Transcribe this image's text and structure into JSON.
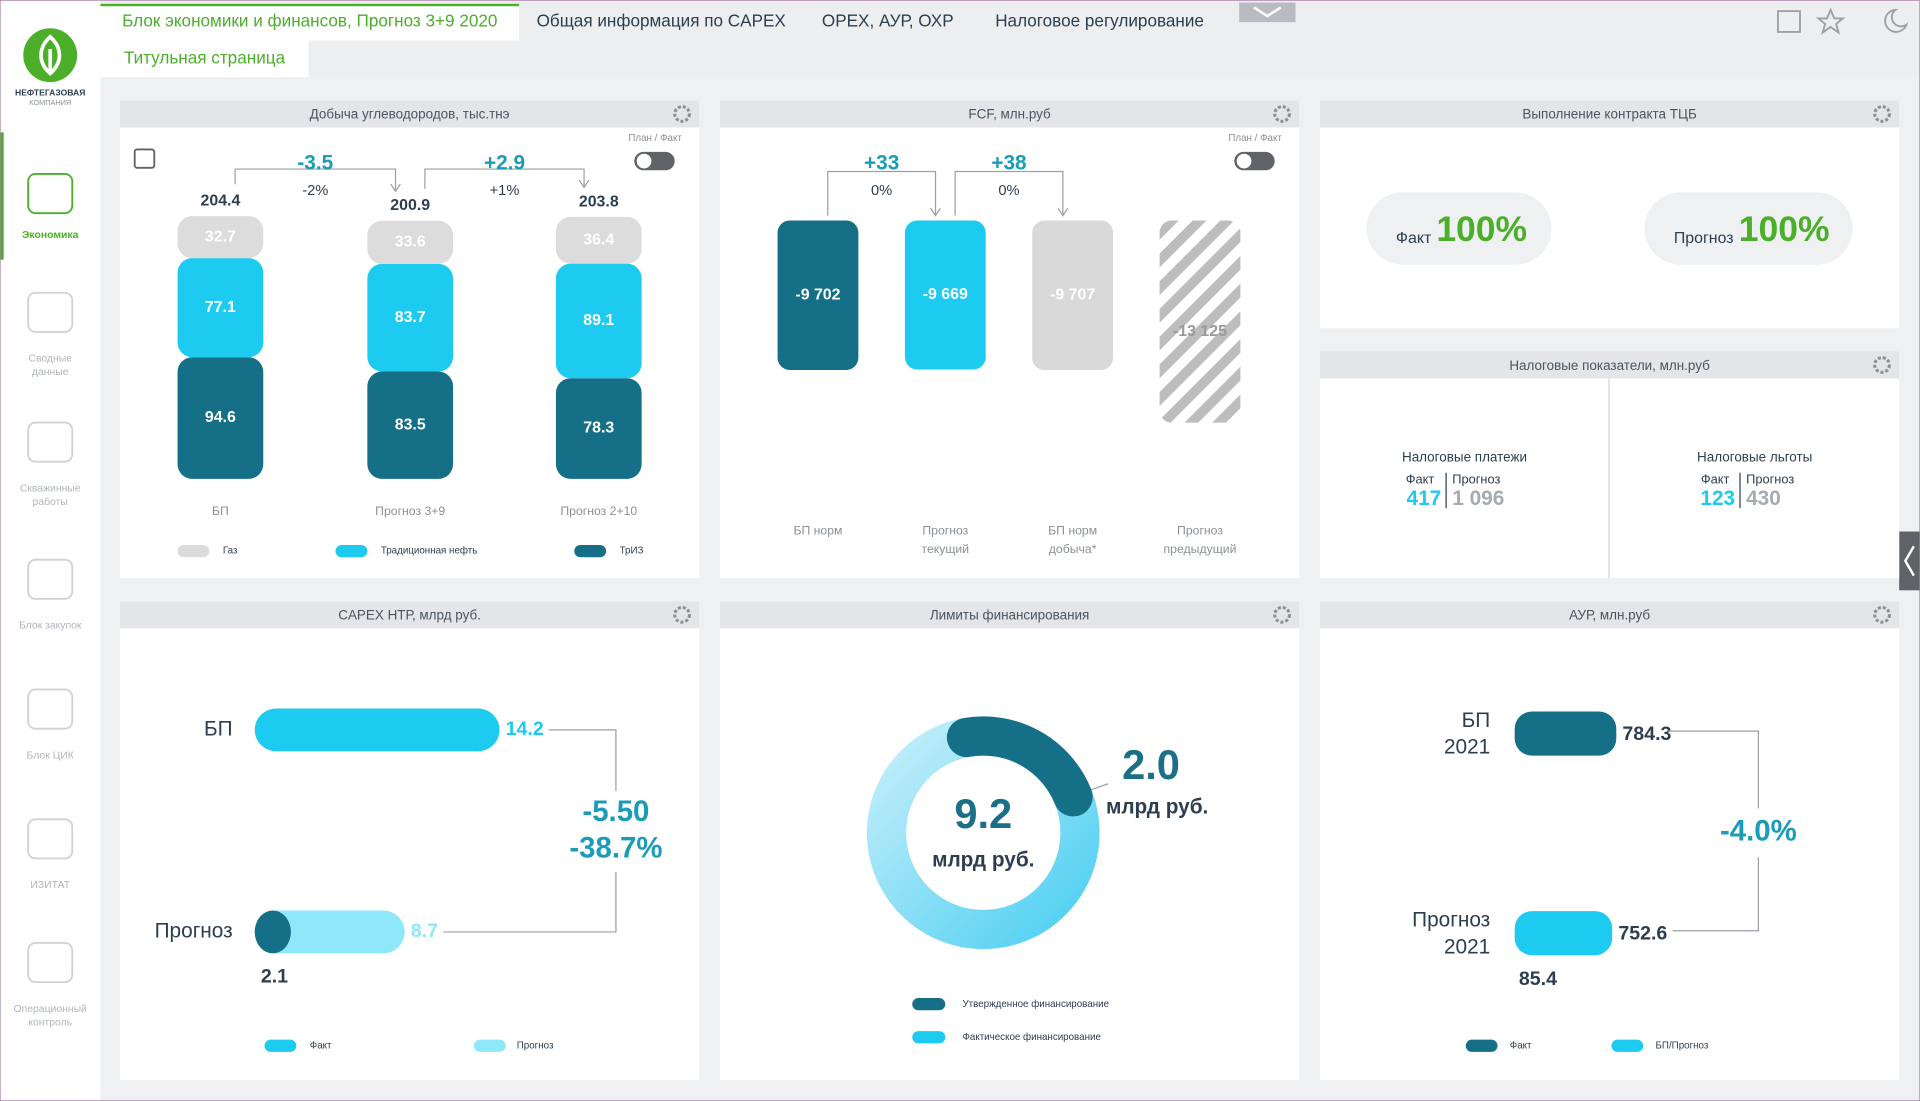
{
  "sidebar": {
    "logo": "НЕФТЕГАЗОВАЯ",
    "logo_sub": "КОМПАНИЯ",
    "items": [
      [
        "Экономика"
      ],
      [
        "Сводные",
        "данные"
      ],
      [
        "Скважинные",
        "работы"
      ],
      [
        "Блок закупок"
      ],
      [
        "Блок ЦИК"
      ],
      [
        "ИЗИТАТ"
      ],
      [
        "Операционный",
        "контроль"
      ]
    ]
  },
  "tabs": [
    "Блок экономики и финансов, Прогноз 3+9 2020",
    "Общая информация по CAPEX",
    "OPEX, АУР, ОХР",
    "Налоговое регулирование",
    "Титульная страница"
  ],
  "production": {
    "title": "Добыча углеводородов, тыс.тнэ",
    "toggle": "План / Факт",
    "categories": [
      "БП",
      "Прогноз 3+9",
      "Прогноз 2+10"
    ],
    "totals": [
      204.4,
      200.9,
      203.8
    ],
    "series": [
      {
        "name": "Газ",
        "color": "#dcdcdc",
        "values": [
          32.7,
          33.6,
          36.4
        ]
      },
      {
        "name": "Традиционная нефть",
        "color": "#1ecbf0",
        "values": [
          77.1,
          83.7,
          89.1
        ]
      },
      {
        "name": "ТрИЗ",
        "color": "#156f87",
        "values": [
          94.6,
          83.5,
          78.3
        ]
      }
    ],
    "deltas": [
      {
        "value": "-3.5",
        "pct": "-2%"
      },
      {
        "value": "+2.9",
        "pct": "+1%"
      }
    ]
  },
  "fcf": {
    "title": "FCF, млн.руб",
    "toggle": "План / Факт",
    "categories": [
      [
        "БП норм"
      ],
      [
        "Прогноз",
        "текущий"
      ],
      [
        "БП норм",
        "добыча*"
      ],
      [
        "Прогноз",
        "предыдущий"
      ]
    ],
    "values": [
      -9702,
      -9669,
      -9707,
      -13125
    ],
    "value_labels": [
      "-9 702",
      "-9 669",
      "-9 707",
      "-13 125"
    ],
    "colors": [
      "#156f87",
      "#1ecbf0",
      "#d9d9d9",
      "#b8b8b8"
    ],
    "hatched": [
      false,
      false,
      false,
      true
    ],
    "deltas": [
      {
        "value": "+33",
        "pct": "0%"
      },
      {
        "value": "+38",
        "pct": "0%"
      }
    ]
  },
  "contract": {
    "title": "Выполнение контракта ТЦБ",
    "items": [
      {
        "label": "Факт",
        "value": "100%"
      },
      {
        "label": "Прогноз",
        "value": "100%"
      }
    ]
  },
  "tax": {
    "title": "Налоговые показатели, млн.руб",
    "groups": [
      {
        "name": "Налоговые платежи",
        "fact_label": "Факт",
        "forecast_label": "Прогноз",
        "fact": "417",
        "forecast": "1 096"
      },
      {
        "name": "Налоговые льготы",
        "fact_label": "Факт",
        "forecast_label": "Прогноз",
        "fact": "123",
        "forecast": "430"
      }
    ]
  },
  "capex": {
    "title": "CAPEX НТР, млрд руб.",
    "categories": [
      "БП",
      "Прогноз"
    ],
    "values": [
      14.2,
      8.7
    ],
    "fact": 2.1,
    "delta": "-5.50",
    "delta_pct": "-38.7%",
    "legend": [
      "Факт",
      "Прогноз"
    ],
    "colors": [
      "#1ecbf0",
      "#8ee8f9"
    ],
    "fact_color": "#156f87"
  },
  "limits": {
    "title": "Лимиты финансирования",
    "values": [
      9.2,
      2
    ],
    "value_labels": [
      "9.2",
      "2.0"
    ],
    "unit": "млрд руб.",
    "legend": [
      "Утвержденное финансирование",
      "Фактическое финансирование"
    ],
    "colors": [
      "#156f87",
      "#1ecbf0"
    ]
  },
  "aur": {
    "title": "АУР, млн.руб",
    "categories": [
      [
        "БП",
        "2021"
      ],
      [
        "Прогноз",
        "2021"
      ]
    ],
    "values": [
      784.3,
      752.6
    ],
    "fact": 85.4,
    "delta": "-4.0%",
    "legend": [
      "Факт",
      "БП/Прогноз"
    ],
    "colors": [
      "#156f87",
      "#1ecbf0"
    ]
  }
}
